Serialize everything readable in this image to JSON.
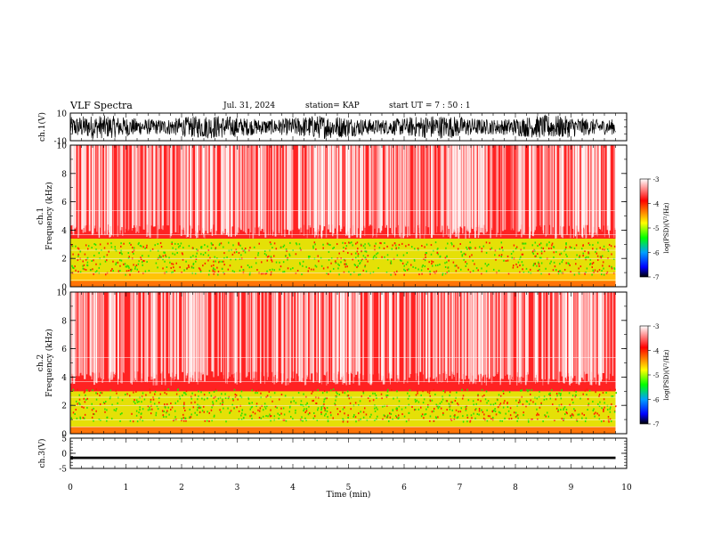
{
  "header": {
    "title": "VLF Spectra",
    "date": "Jul. 31, 2024",
    "station": "station= KAP",
    "start": "start UT =  7 : 50 : 1"
  },
  "chart_data": [
    {
      "type": "line",
      "panel": "ch1-waveform",
      "ylabel": "ch.1(V)",
      "ylim": [
        -10,
        10
      ],
      "ytick_labels": [
        "10",
        "-10"
      ],
      "xlim": [
        0,
        10
      ],
      "description_values": "dense noise spanning roughly -8 to 8 V"
    },
    {
      "type": "heatmap",
      "panel": "ch1-spectrogram",
      "ylabel_top": "ch.1",
      "ylabel": "Frequency (kHz)",
      "ylim": [
        0,
        10
      ],
      "ytick_labels": [
        "0",
        "2",
        "4",
        "6",
        "8",
        "10"
      ],
      "xlim": [
        0,
        10
      ],
      "data_end_min": 9.8,
      "colorbar": {
        "label": "log(PSD)(V²/Hz)",
        "range": [
          -7,
          -3
        ],
        "tick_labels": [
          "-3",
          "-4",
          "-5",
          "-6",
          "-7"
        ],
        "colors": [
          "#ffffff",
          "#ff0000",
          "#ffff00",
          "#00ff00",
          "#00a0ff",
          "#0000ff",
          "#000000"
        ]
      },
      "bands": [
        {
          "from": 0.0,
          "to": 0.4,
          "level": "red-yellow"
        },
        {
          "from": 0.4,
          "to": 1.0,
          "level": "yellow"
        },
        {
          "from": 1.0,
          "to": 2.0,
          "level": "yellow-green"
        },
        {
          "from": 2.0,
          "to": 3.4,
          "level": "yellow-green"
        },
        {
          "from": 3.4,
          "to": 10.0,
          "level": "red-white"
        }
      ]
    },
    {
      "type": "heatmap",
      "panel": "ch2-spectrogram",
      "ylabel_top": "ch.2",
      "ylabel": "Frequency (kHz)",
      "ylim": [
        0,
        10
      ],
      "ytick_labels": [
        "0",
        "2",
        "4",
        "6",
        "8",
        "10"
      ],
      "xlim": [
        0,
        10
      ],
      "data_end_min": 9.8,
      "colorbar": {
        "label": "log(PSD)(V²/Hz)",
        "range": [
          -7,
          -3
        ],
        "tick_labels": [
          "-3",
          "-4",
          "-5",
          "-6",
          "-7"
        ]
      },
      "bands": [
        {
          "from": 0.0,
          "to": 0.5,
          "level": "red-yellow"
        },
        {
          "from": 0.5,
          "to": 2.0,
          "level": "yellow-green"
        },
        {
          "from": 2.0,
          "to": 3.0,
          "level": "yellow-green"
        },
        {
          "from": 3.0,
          "to": 10.0,
          "level": "red-white"
        }
      ]
    },
    {
      "type": "line",
      "panel": "ch3-waveform",
      "ylabel": "ch.3(V)",
      "ylim": [
        -5,
        5
      ],
      "ytick_labels": [
        "5",
        "0",
        "-5"
      ],
      "xlim": [
        0,
        10
      ],
      "band_center": -1.5,
      "band_halfwidth": 0.4
    }
  ],
  "xaxis": {
    "label": "Time (min)",
    "tick_labels": [
      "0",
      "1",
      "2",
      "3",
      "4",
      "5",
      "6",
      "7",
      "8",
      "9",
      "10"
    ]
  }
}
